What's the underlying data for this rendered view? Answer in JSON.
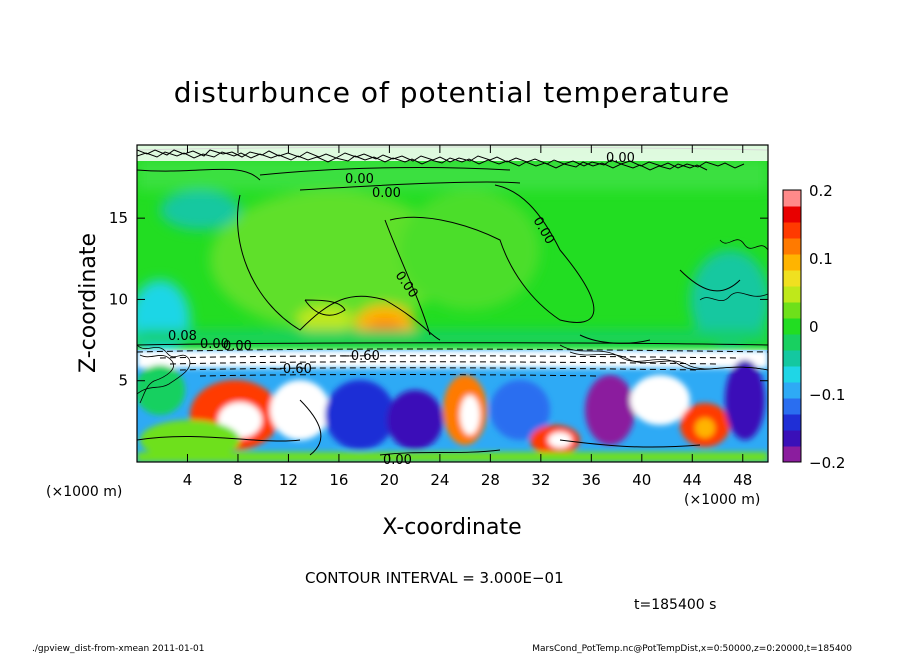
{
  "chart_data": {
    "type": "heatmap",
    "title": "disturbunce of potential temperature",
    "xlabel": "X-coordinate",
    "ylabel": "Z-coordinate",
    "x_unit": "(×1000 m)",
    "y_unit": "(×1000 m)",
    "x_ticks": [
      4,
      8,
      12,
      16,
      20,
      24,
      28,
      32,
      36,
      40,
      44,
      48
    ],
    "y_ticks": [
      5,
      10,
      15
    ],
    "xlim": [
      0,
      50
    ],
    "ylim": [
      0,
      19.5
    ],
    "colorbar": {
      "ticks": [
        "0.2",
        "0.1",
        "0",
        "−0.1",
        "−0.2"
      ],
      "tick_values": [
        0.2,
        0.1,
        0,
        -0.1,
        -0.2
      ],
      "range": [
        -0.2,
        0.2
      ],
      "colors": [
        "#8b1d9e",
        "#3a10b8",
        "#1f2fd6",
        "#2a6ef0",
        "#2eaaf5",
        "#1fd6e6",
        "#14c8a0",
        "#18d060",
        "#22dd22",
        "#6ee01a",
        "#bfe81a",
        "#f0e020",
        "#ffb400",
        "#ff7a00",
        "#ff3a00",
        "#e80000",
        "#ff8a8a"
      ]
    },
    "contour_labels": [
      "0.00",
      "0.00",
      "0.00",
      "0.00",
      "0.00",
      "0.00",
      "0.08",
      "0.00",
      "−0.60",
      "−0.60",
      "0.00"
    ],
    "contour_interval": "CONTOUR INTERVAL = 3.000E−01",
    "time": "t=185400 s"
  },
  "footer": {
    "left": "./gpview_dist-from-xmean  2011-01-01",
    "right": "MarsCond_PotTemp.nc@PotTempDist,x=0:50000,z=0:20000,t=185400"
  }
}
